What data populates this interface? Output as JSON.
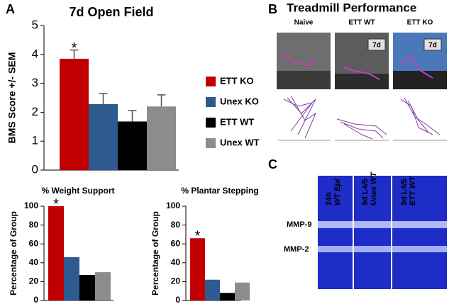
{
  "chart_data": [
    {
      "type": "bar",
      "title": "7d Open Field",
      "y_label": "BMS Score +/- SEM",
      "categories": [
        "ETT KO",
        "Unex KO",
        "ETT WT",
        "Unex WT"
      ],
      "values": [
        3.85,
        2.28,
        1.68,
        2.2
      ],
      "errors": [
        0.3,
        0.37,
        0.38,
        0.4
      ],
      "colors": [
        "#c00000",
        "#2e5b8f",
        "#000000",
        "#8c8c8c"
      ],
      "ylim": [
        0,
        5
      ],
      "yticks": [
        0,
        1,
        2,
        3,
        4,
        5
      ],
      "legend": "right",
      "annotation": "*"
    },
    {
      "type": "bar",
      "title": "% Weight Support",
      "y_label": "Percentage of Group",
      "categories": [
        "ETT KO",
        "Unex KO",
        "ETT WT",
        "Unex WT"
      ],
      "values": [
        100,
        46,
        27,
        30
      ],
      "colors": [
        "#c00000",
        "#2e5b8f",
        "#000000",
        "#8c8c8c"
      ],
      "ylim": [
        0,
        100
      ],
      "yticks": [
        0,
        20,
        40,
        60,
        80,
        100
      ],
      "annotation": "*"
    },
    {
      "type": "bar",
      "title": "% Plantar Stepping",
      "y_label": "Percentage of Group",
      "categories": [
        "ETT KO",
        "Unex KO",
        "ETT WT",
        "Unex WT"
      ],
      "values": [
        66,
        22,
        8,
        19
      ],
      "colors": [
        "#c00000",
        "#2e5b8f",
        "#000000",
        "#8c8c8c"
      ],
      "ylim": [
        0,
        100
      ],
      "yticks": [
        0,
        20,
        40,
        60,
        80,
        100
      ],
      "annotation": "*"
    }
  ],
  "panel_labels": [
    "A",
    "B",
    "C"
  ],
  "treadmill": {
    "title": "Treadmill Performance",
    "groups": [
      "Naive",
      "ETT WT",
      "ETT KO"
    ],
    "timepoint": "7d"
  },
  "zymogram": {
    "lanes": [
      [
        "24h",
        "WT Epi"
      ],
      [
        "9d L4/5",
        "Unex WT"
      ],
      [
        "9d L4/5",
        "ETT WT"
      ]
    ],
    "bands": [
      "MMP-9",
      "MMP-2"
    ]
  }
}
